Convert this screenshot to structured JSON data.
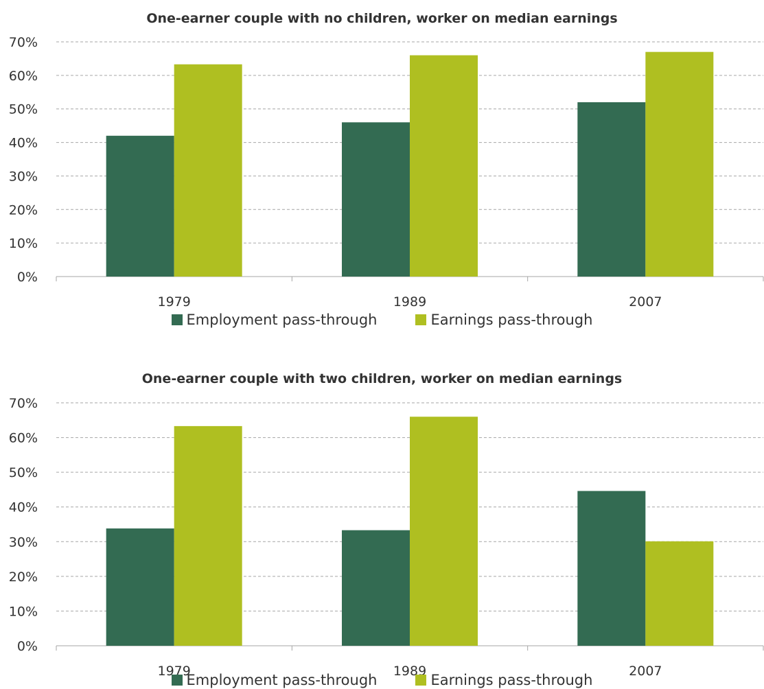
{
  "colors": {
    "employment": "#336b52",
    "earnings": "#afbf21",
    "axis": "#a6a6a6",
    "text": "#333333"
  },
  "chart_data": [
    {
      "type": "bar",
      "title": "One-earner couple with no children, worker on median earnings",
      "categories": [
        "1979",
        "1989",
        "2007"
      ],
      "series": [
        {
          "name": "Employment pass-through",
          "values": [
            42,
            46,
            52
          ]
        },
        {
          "name": "Earnings pass-through",
          "values": [
            63.3,
            66,
            67
          ]
        }
      ],
      "ylim": [
        0,
        70
      ],
      "yticks": [
        "0%",
        "10%",
        "20%",
        "30%",
        "40%",
        "50%",
        "60%",
        "70%"
      ],
      "grid": true,
      "legend": "bottom"
    },
    {
      "type": "bar",
      "title": "One-earner couple with two children, worker on median earnings",
      "categories": [
        "1979",
        "1989",
        "2007"
      ],
      "series": [
        {
          "name": "Employment pass-through",
          "values": [
            33.8,
            33.3,
            44.6
          ]
        },
        {
          "name": "Earnings pass-through",
          "values": [
            63.3,
            66,
            30.1
          ]
        }
      ],
      "ylim": [
        0,
        70
      ],
      "yticks": [
        "0%",
        "10%",
        "20%",
        "30%",
        "40%",
        "50%",
        "60%",
        "70%"
      ],
      "grid": true,
      "legend": "bottom"
    }
  ]
}
